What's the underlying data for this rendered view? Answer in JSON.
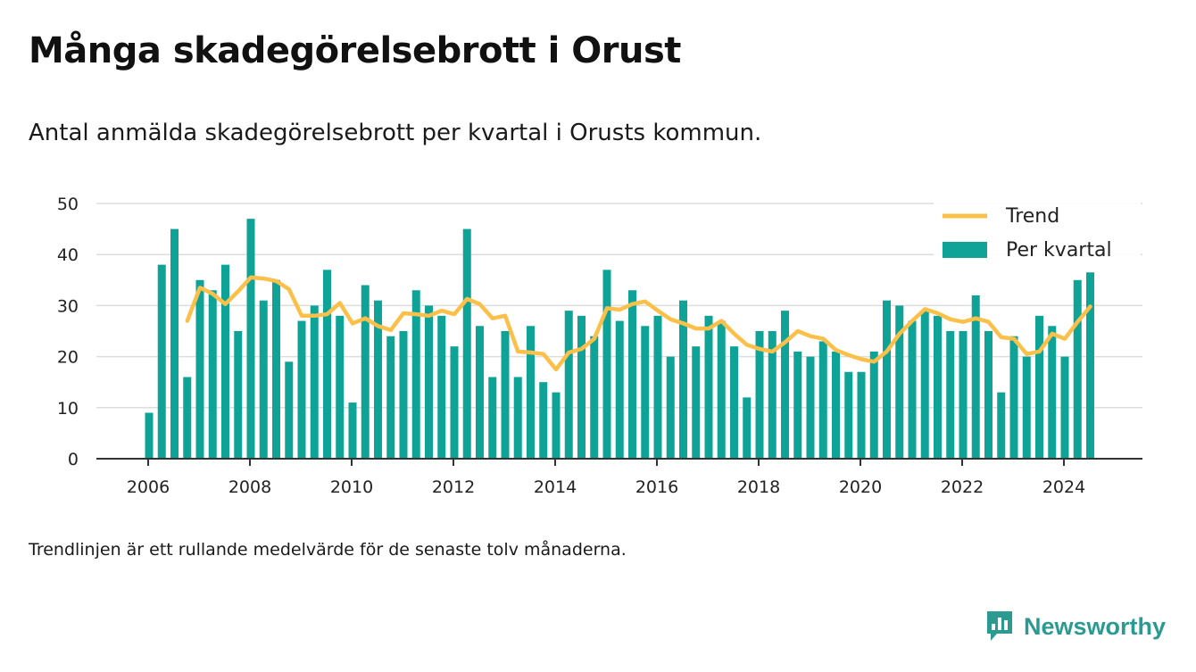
{
  "title": "Många skadegörelsebrott i Orust",
  "subtitle": "Antal anmälda skadegörelsebrott per kvartal i Orusts kommun.",
  "footnote": "Trendlinjen är ett rullande medelvärde för de senaste tolv månaderna.",
  "brand": {
    "name": "Newsworthy",
    "icon": "newsworthy-logo-icon",
    "color": "#2b9b92"
  },
  "colors": {
    "bars": "#0fa398",
    "trend": "#fbc04a",
    "grid": "#dddddd",
    "axis": "#333333"
  },
  "chart_data": {
    "type": "bar",
    "x_axis": {
      "ticks": [
        "2006",
        "2008",
        "2010",
        "2012",
        "2014",
        "2016",
        "2018",
        "2020",
        "2022",
        "2024"
      ],
      "range": [
        2005,
        2025.5
      ]
    },
    "y_axis": {
      "ticks": [
        0,
        10,
        20,
        30,
        40,
        50
      ],
      "ylim": [
        0,
        50
      ]
    },
    "grid": true,
    "legend": {
      "placement": "top-right",
      "entries": [
        "Trend",
        "Per kvartal"
      ]
    },
    "quarters_start": "2006-Q1",
    "series": [
      {
        "name": "Per kvartal",
        "type": "bar",
        "values": [
          9,
          38,
          45,
          16,
          35,
          33,
          38,
          25,
          47,
          31,
          35,
          19,
          27,
          30,
          37,
          28,
          11,
          34,
          31,
          24,
          25,
          33,
          30,
          28,
          22,
          45,
          26,
          16,
          25,
          16,
          26,
          15,
          13,
          29,
          28,
          24,
          37,
          27,
          33,
          26,
          28,
          20,
          31,
          22,
          28,
          27,
          22,
          12,
          25,
          25,
          29,
          21,
          20,
          23,
          21,
          17,
          17,
          21,
          31,
          30,
          27,
          29,
          28,
          25,
          25,
          32,
          25,
          13,
          24,
          20,
          28,
          26,
          20,
          35,
          36.5
        ]
      },
      {
        "name": "Trend",
        "type": "line",
        "values": [
          null,
          null,
          null,
          27,
          33.5,
          32.3,
          30.3,
          32.8,
          35.5,
          35.3,
          34.8,
          33.2,
          28,
          28,
          28.3,
          30.5,
          26.5,
          27.5,
          26,
          25.2,
          28.5,
          28.3,
          28,
          29,
          28.3,
          31.3,
          30.3,
          27.5,
          28,
          21,
          20.8,
          20.5,
          17.5,
          20.8,
          21.5,
          23.5,
          29.5,
          29.2,
          30.3,
          30.8,
          29,
          27.3,
          26.5,
          25.5,
          25.5,
          27,
          24.5,
          22.3,
          21.5,
          21,
          22.8,
          25,
          24,
          23.5,
          21.3,
          20.3,
          19.5,
          19,
          21,
          24.5,
          27,
          29.3,
          28.5,
          27.3,
          26.8,
          27.5,
          26.8,
          23.8,
          23.5,
          20.5,
          21,
          24.5,
          23.5,
          26.8,
          29.8
        ]
      }
    ]
  }
}
